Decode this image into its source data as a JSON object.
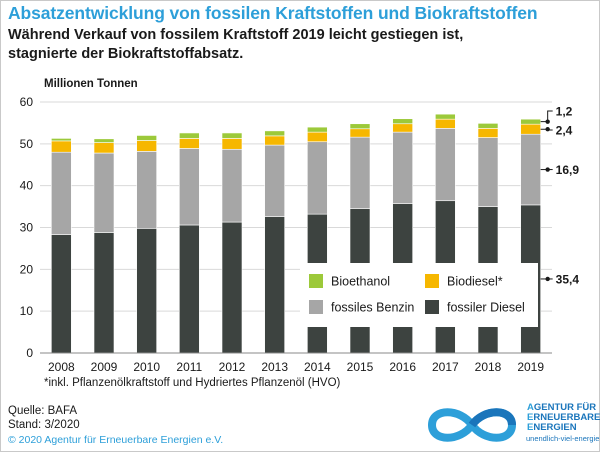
{
  "header": {
    "title": "Absatzentwicklung von fossilen Kraftstoffen und Biokraftstoffen",
    "subtitle_line1": "Während Verkauf von fossilem Kraftstoff 2019 leicht gestiegen ist,",
    "subtitle_line2": "stagnierte der Biokraftstoffabsatz."
  },
  "colors": {
    "fossiler_diesel": "#3d4340",
    "fossiles_benzin": "#a6a6a6",
    "biodiesel": "#f6b700",
    "bioethanol": "#9cc93a",
    "title": "#2d9fd9",
    "logo": "#1a75bb"
  },
  "chart_data": {
    "type": "bar",
    "stacked": true,
    "ylabel": "Millionen Tonnen",
    "xlabel": "",
    "ylim": [
      0,
      60
    ],
    "yticks": [
      0,
      10,
      20,
      30,
      40,
      50,
      60
    ],
    "grid": true,
    "legend_position": "lower-right",
    "categories": [
      "2008",
      "2009",
      "2010",
      "2011",
      "2012",
      "2013",
      "2014",
      "2015",
      "2016",
      "2017",
      "2018",
      "2019"
    ],
    "series": [
      {
        "name": "fossiler Diesel",
        "values": [
          28.3,
          28.8,
          29.8,
          30.6,
          31.3,
          32.6,
          33.2,
          34.5,
          35.7,
          36.4,
          35.0,
          35.4
        ]
      },
      {
        "name": "fossiles Benzin",
        "values": [
          19.7,
          19.0,
          18.4,
          18.3,
          17.4,
          17.1,
          17.3,
          17.1,
          17.1,
          17.3,
          16.5,
          16.9
        ]
      },
      {
        "name": "Biodiesel*",
        "values": [
          2.7,
          2.5,
          2.6,
          2.4,
          2.6,
          2.2,
          2.3,
          2.0,
          2.0,
          2.2,
          2.2,
          2.4
        ]
      },
      {
        "name": "Bioethanol",
        "values": [
          0.6,
          0.9,
          1.2,
          1.3,
          1.3,
          1.2,
          1.2,
          1.2,
          1.2,
          1.2,
          1.2,
          1.2
        ]
      }
    ],
    "annotations": [
      {
        "label": "1,2",
        "series": "Bioethanol",
        "category": "2019"
      },
      {
        "label": "2,4",
        "series": "Biodiesel*",
        "category": "2019"
      },
      {
        "label": "16,9",
        "series": "fossiles Benzin",
        "category": "2019"
      },
      {
        "label": "35,4",
        "series": "fossiler Diesel",
        "category": "2019"
      }
    ],
    "footnote": "*inkl. Pflanzenölkraftstoff und Hydriertes Pflanzenöl (HVO)"
  },
  "source": {
    "line1": "Quelle: BAFA",
    "line2": "Stand: 3/2020"
  },
  "copyright": "© 2020 Agentur für Erneuerbare Energien e.V.",
  "logo": {
    "line1_first": "A",
    "line1_rest": "GENTUR FÜR",
    "line2_first": "E",
    "line2_rest": "RNEUERBARE",
    "line3_first": "E",
    "line3_rest": "NERGIEN",
    "url": "unendlich-viel-energie.de",
    "icon": "infinity-icon"
  }
}
